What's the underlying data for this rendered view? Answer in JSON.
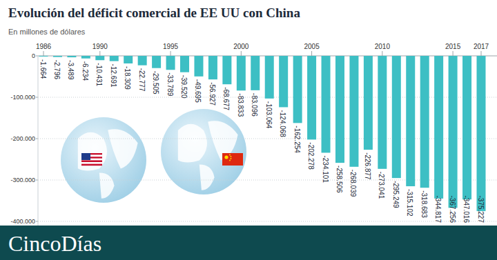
{
  "chart_data": {
    "type": "bar",
    "title": "Evolución del déficit comercial de EE UU con China",
    "subtitle": "En millones de dólares",
    "source": "CincoDías",
    "categories": [
      "1986",
      null,
      null,
      null,
      "1990",
      null,
      null,
      null,
      null,
      "1995",
      null,
      null,
      null,
      null,
      "2000",
      null,
      null,
      null,
      null,
      "2005",
      null,
      null,
      null,
      null,
      "2010",
      null,
      null,
      null,
      null,
      "2015",
      null,
      "2017"
    ],
    "values": [
      -1664,
      -2796,
      -3489,
      -6234,
      -10431,
      -12691,
      -18309,
      -22777,
      -29505,
      -33789,
      -39520,
      -49695,
      -56927,
      -68677,
      -83833,
      -83096,
      -103064,
      -124068,
      -162254,
      -202278,
      -234101,
      -258506,
      -268039,
      -226877,
      -273041,
      -295249,
      -315102,
      -318683,
      -344817,
      -367256,
      -347016,
      -375227
    ],
    "value_labels": [
      "-1.664",
      "-2.796",
      "-3.489",
      "-6.234",
      "-10.431",
      "-12.691",
      "-18.309",
      "-22.777",
      "-29.505",
      "-33.789",
      "-39.520",
      "-49.695",
      "-56.927",
      "-68.677",
      "-83.833",
      "-83.096",
      "-103.064",
      "-124.068",
      "-162.254",
      "-202.278",
      "-234.101",
      "-258.506",
      "-268.039",
      "-226.877",
      "-273.041",
      "-295.249",
      "-315.102",
      "-318.683",
      "-344.817",
      "-367.256",
      "-347.016",
      "-375.227"
    ],
    "color": "#3dbfc4",
    "ylim": [
      -410000,
      0
    ],
    "yticks": [
      0,
      {
        "value": -100000,
        "label": "-100.000"
      },
      {
        "value": -200000,
        "label": "-200.000"
      },
      {
        "value": -300000,
        "label": "-300.000"
      },
      {
        "value": -400000,
        "label": "-400.000"
      }
    ],
    "grid": true,
    "data_labels": true
  }
}
